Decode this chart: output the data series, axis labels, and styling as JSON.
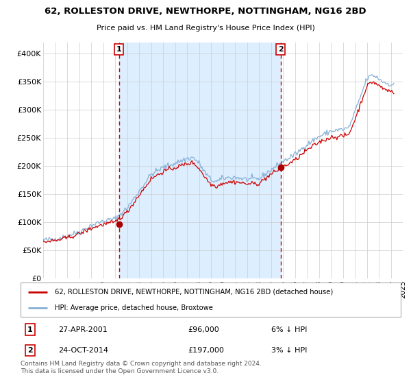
{
  "title": "62, ROLLESTON DRIVE, NEWTHORPE, NOTTINGHAM, NG16 2BD",
  "subtitle": "Price paid vs. HM Land Registry's House Price Index (HPI)",
  "ylim": [
    0,
    420000
  ],
  "yticks": [
    0,
    50000,
    100000,
    150000,
    200000,
    250000,
    300000,
    350000,
    400000
  ],
  "ytick_labels": [
    "£0",
    "£50K",
    "£100K",
    "£150K",
    "£200K",
    "£250K",
    "£300K",
    "£350K",
    "£400K"
  ],
  "sale1": {
    "date_num": 2001.32,
    "price": 96000,
    "label": "1",
    "date_str": "27-APR-2001",
    "pct": "6% ↓ HPI"
  },
  "sale2": {
    "date_num": 2014.81,
    "price": 197000,
    "label": "2",
    "date_str": "24-OCT-2014",
    "pct": "3% ↓ HPI"
  },
  "line_color_property": "#cc0000",
  "line_color_hpi": "#85afd4",
  "shade_color": "#ddeeff",
  "marker_color_property": "#aa0000",
  "vline_color": "#cc0000",
  "background_color": "#ffffff",
  "grid_color": "#cccccc",
  "legend_label_property": "62, ROLLESTON DRIVE, NEWTHORPE, NOTTINGHAM, NG16 2BD (detached house)",
  "legend_label_hpi": "HPI: Average price, detached house, Broxtowe",
  "footer": "Contains HM Land Registry data © Crown copyright and database right 2024.\nThis data is licensed under the Open Government Licence v3.0.",
  "xtick_years": [
    1995,
    1996,
    1997,
    1998,
    1999,
    2000,
    2001,
    2002,
    2003,
    2004,
    2005,
    2006,
    2007,
    2008,
    2009,
    2010,
    2011,
    2012,
    2013,
    2014,
    2015,
    2016,
    2017,
    2018,
    2019,
    2020,
    2021,
    2022,
    2023,
    2024,
    2025
  ]
}
